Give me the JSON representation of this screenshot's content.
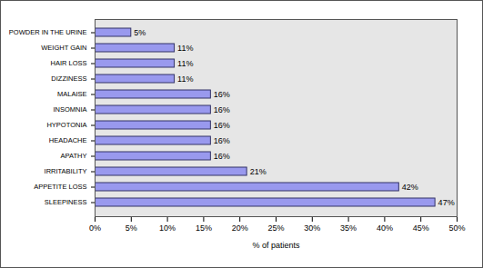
{
  "chart_data": {
    "type": "bar",
    "orientation": "horizontal",
    "xlabel": "% of patients",
    "categories": [
      "POWDER IN THE URINE",
      "WEIGHT GAIN",
      "HAIR LOSS",
      "DIZZINESS",
      "MALAISE",
      "INSOMNIA",
      "HYPOTONIA",
      "HEADACHE",
      "APATHY",
      "IRRITABILITY",
      "APPETITE LOSS",
      "SLEEPINESS"
    ],
    "values": [
      5,
      11,
      11,
      11,
      16,
      16,
      16,
      16,
      16,
      21,
      42,
      47
    ],
    "value_labels": [
      "5%",
      "11%",
      "11%",
      "11%",
      "16%",
      "16%",
      "16%",
      "16%",
      "16%",
      "21%",
      "42%",
      "47%"
    ],
    "data_labels": true,
    "color": "#9999ee",
    "xlim": [
      0,
      50
    ],
    "xticks": [
      {
        "value": 0,
        "label": "0%"
      },
      {
        "value": 5,
        "label": "5%"
      },
      {
        "value": 10,
        "label": "10%"
      },
      {
        "value": 15,
        "label": "15%"
      },
      {
        "value": 20,
        "label": "20%"
      },
      {
        "value": 25,
        "label": "25%"
      },
      {
        "value": 30,
        "label": "30%"
      },
      {
        "value": 35,
        "label": "35%"
      },
      {
        "value": 40,
        "label": "40%"
      },
      {
        "value": 45,
        "label": "45%"
      },
      {
        "value": 50,
        "label": "50%"
      }
    ],
    "grid": false
  }
}
